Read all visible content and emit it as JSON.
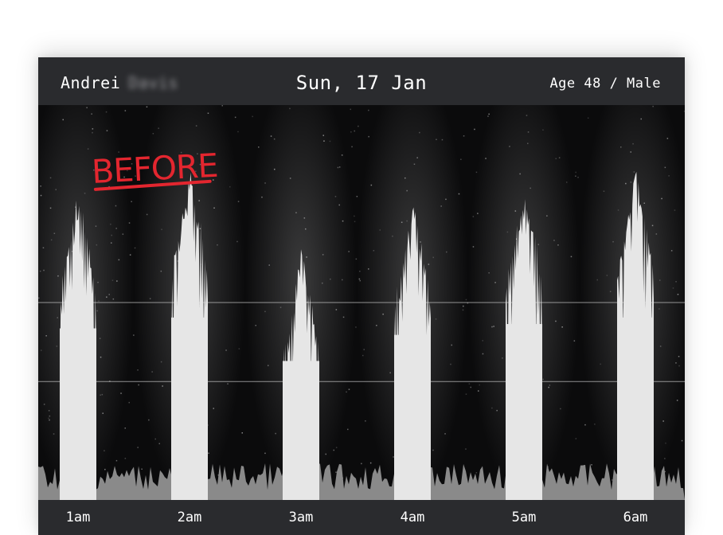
{
  "header": {
    "first_name": "Andrei",
    "last_name_redacted": "Davis",
    "date": "Sun, 17 Jan",
    "demographics": "Age 48 / Male"
  },
  "annotation": {
    "text": "BEFORE",
    "color": "#e3262f"
  },
  "colors": {
    "background": "#0b0b0c",
    "bars": "#e6e6e6",
    "baseline_noise": "#8a8a8a",
    "header_bar": "#2a2b2e"
  },
  "chart_data": {
    "type": "bar",
    "categories": [
      "1am",
      "2am",
      "3am",
      "4am",
      "5am",
      "6am"
    ],
    "ylim": [
      0,
      1
    ],
    "gridlines": [
      0.5,
      0.3
    ],
    "grid": true,
    "baseline_level": 0.07,
    "series": [
      {
        "values": [
          0.79,
          0.84,
          0.64,
          0.76,
          0.81,
          0.84
        ]
      }
    ]
  }
}
